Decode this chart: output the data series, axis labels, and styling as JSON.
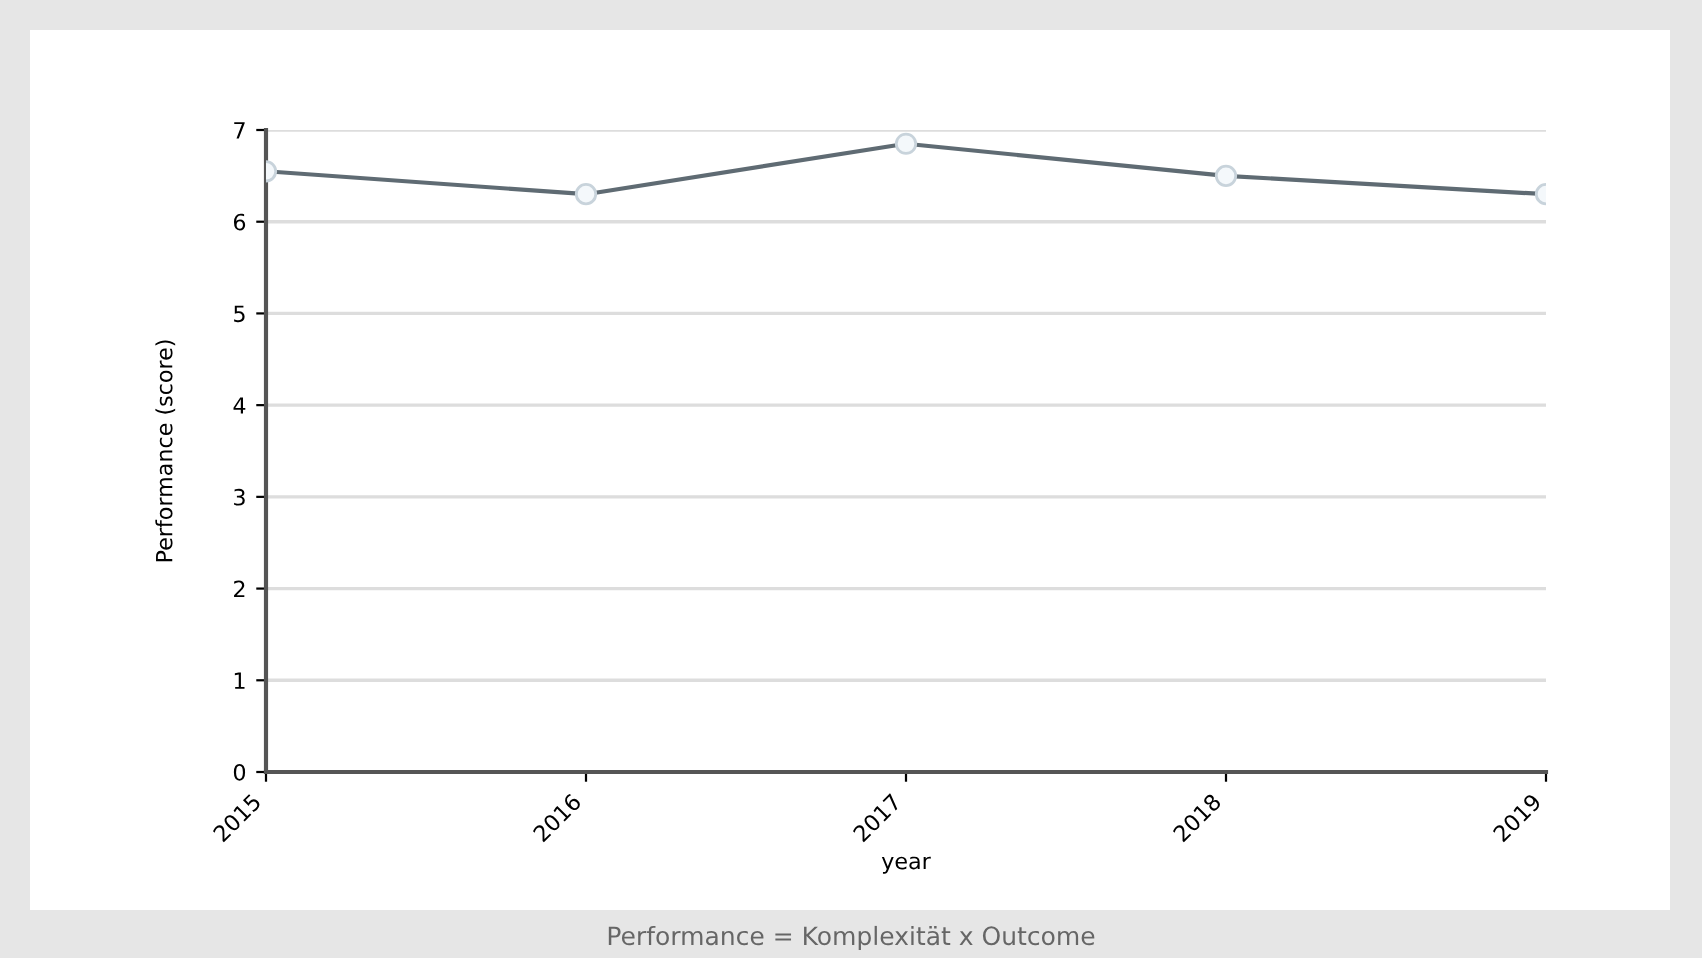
{
  "chart_data": {
    "type": "line",
    "xlabel": "year",
    "ylabel": "Performance (score)",
    "categories": [
      "2015",
      "2016",
      "2017",
      "2018",
      "2019"
    ],
    "series": [
      {
        "color": "#5f6b73",
        "values": [
          6.55,
          6.3,
          6.85,
          6.5,
          6.3
        ]
      }
    ],
    "ylim": [
      0,
      7
    ],
    "yticks": [
      0,
      1,
      2,
      3,
      4,
      5,
      6,
      7
    ],
    "grid": "y",
    "marker": "circle",
    "line_style": "solid",
    "legend": false,
    "annotations": [
      "Performance = Komplexität x Outcome"
    ]
  }
}
